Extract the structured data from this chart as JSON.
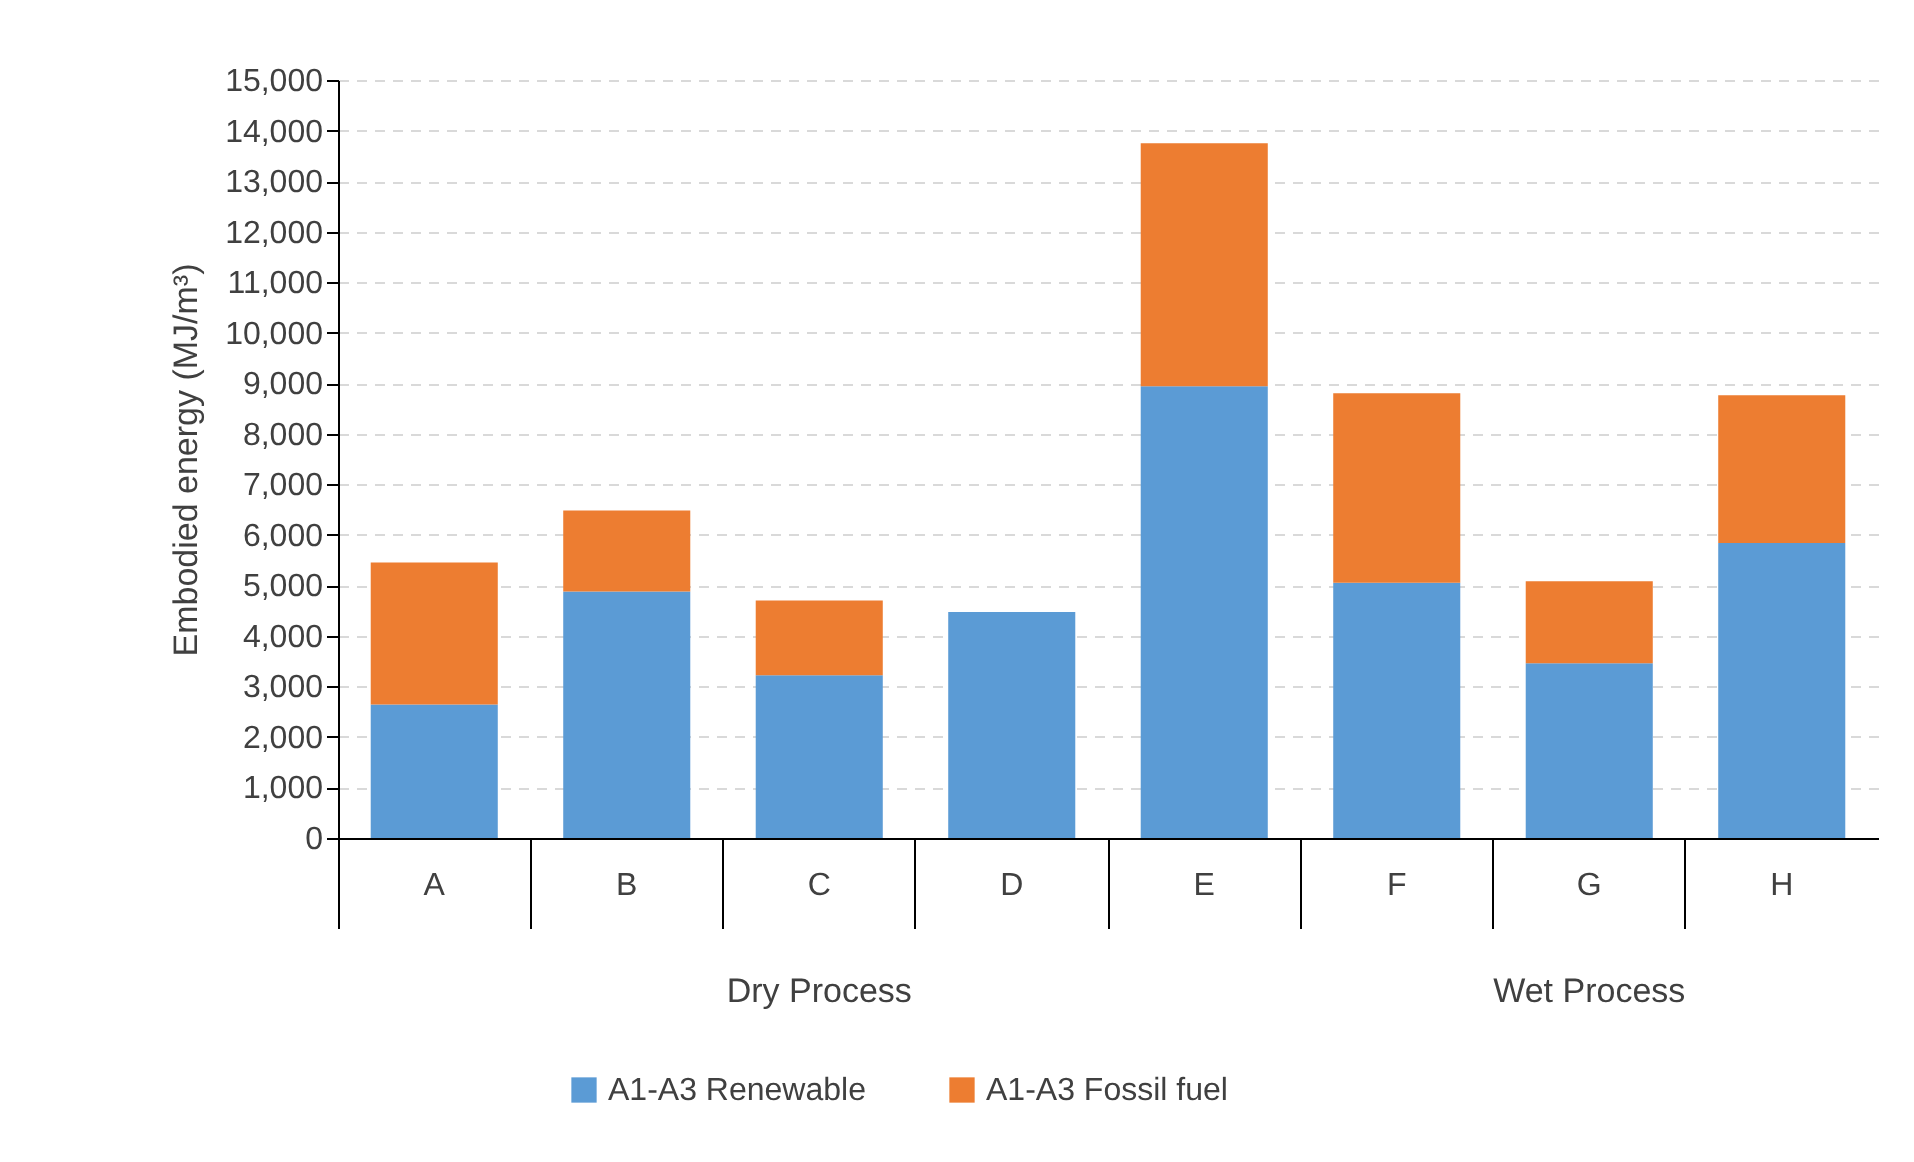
{
  "chart_data": {
    "type": "bar",
    "stacked": true,
    "ylabel": "Embodied energy (MJ/m³)",
    "categories": [
      "A",
      "B",
      "C",
      "D",
      "E",
      "F",
      "G",
      "H"
    ],
    "series": [
      {
        "name": "A1-A3 Renewable",
        "color": "#5b9bd5",
        "values": [
          2640,
          4880,
          3220,
          4470,
          8940,
          5050,
          3460,
          5840
        ]
      },
      {
        "name": "A1-A3 Fossil fuel",
        "color": "#ed7d31",
        "values": [
          2810,
          1600,
          1480,
          0,
          4810,
          3750,
          1620,
          2920
        ]
      }
    ],
    "ylim": [
      0,
      15000
    ],
    "yticks": [
      0,
      {
        "value": 1000,
        "label": "1,000"
      },
      {
        "value": 2000,
        "label": "2,000"
      },
      {
        "value": 3000,
        "label": "3,000"
      },
      {
        "value": 4000,
        "label": "4,000"
      },
      {
        "value": 5000,
        "label": "5,000"
      },
      {
        "value": 6000,
        "label": "6,000"
      },
      {
        "value": 7000,
        "label": "7,000"
      },
      {
        "value": 8000,
        "label": "8,000"
      },
      {
        "value": 9000,
        "label": "9,000"
      },
      {
        "value": 10000,
        "label": "10,000"
      },
      {
        "value": 11000,
        "label": "11,000"
      },
      {
        "value": 12000,
        "label": "12,000"
      },
      {
        "value": 13000,
        "label": "13,000"
      },
      {
        "value": 14000,
        "label": "14,000"
      },
      {
        "value": 15000,
        "label": "15,000"
      }
    ],
    "grid": "y",
    "legend": "bottom",
    "annotations": [
      "Dry Process",
      "Wet Process"
    ]
  }
}
